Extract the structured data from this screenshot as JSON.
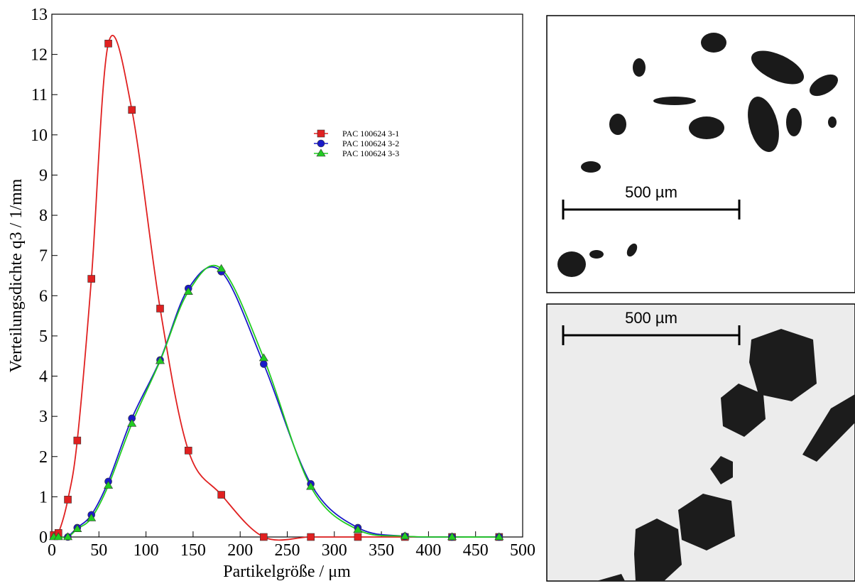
{
  "chart_data": {
    "type": "line",
    "xlabel": "Partikelgröße / μm",
    "ylabel": "Verteilungsdichte q3 / 1/mm",
    "x": [
      2,
      7,
      17,
      27,
      42,
      60,
      85,
      115,
      145,
      180,
      225,
      275,
      325,
      375,
      425,
      475
    ],
    "series": [
      {
        "name": "PAC 100624 3-1",
        "color": "#e02020",
        "marker": "square",
        "values": [
          0.05,
          0.1,
          0.93,
          2.4,
          6.42,
          12.27,
          10.62,
          5.68,
          2.15,
          1.05,
          0,
          0,
          0,
          0,
          0,
          0
        ]
      },
      {
        "name": "PAC 100624 3-2",
        "color": "#1a1ac8",
        "marker": "circle",
        "values": [
          null,
          null,
          0,
          0.23,
          0.55,
          1.38,
          2.95,
          4.4,
          6.18,
          6.6,
          4.3,
          1.32,
          0.23,
          0.02,
          0,
          0
        ]
      },
      {
        "name": "PAC 100624 3-3",
        "color": "#22cc22",
        "marker": "triangle",
        "values": [
          0,
          0,
          0,
          0.2,
          0.47,
          1.28,
          2.82,
          4.38,
          6.1,
          6.67,
          4.45,
          1.25,
          0.18,
          0.02,
          0,
          0
        ]
      }
    ],
    "xlim": [
      0,
      500
    ],
    "xticks": [
      0,
      50,
      100,
      150,
      200,
      250,
      300,
      350,
      400,
      450,
      500
    ],
    "ylim": [
      0,
      13
    ],
    "yticks": [
      0,
      1,
      2,
      3,
      4,
      5,
      6,
      7,
      8,
      9,
      10,
      11,
      12,
      13
    ],
    "legend": "upper-center"
  },
  "images": [
    {
      "scale_label": "500 µm"
    },
    {
      "scale_label": "500 µm"
    }
  ]
}
